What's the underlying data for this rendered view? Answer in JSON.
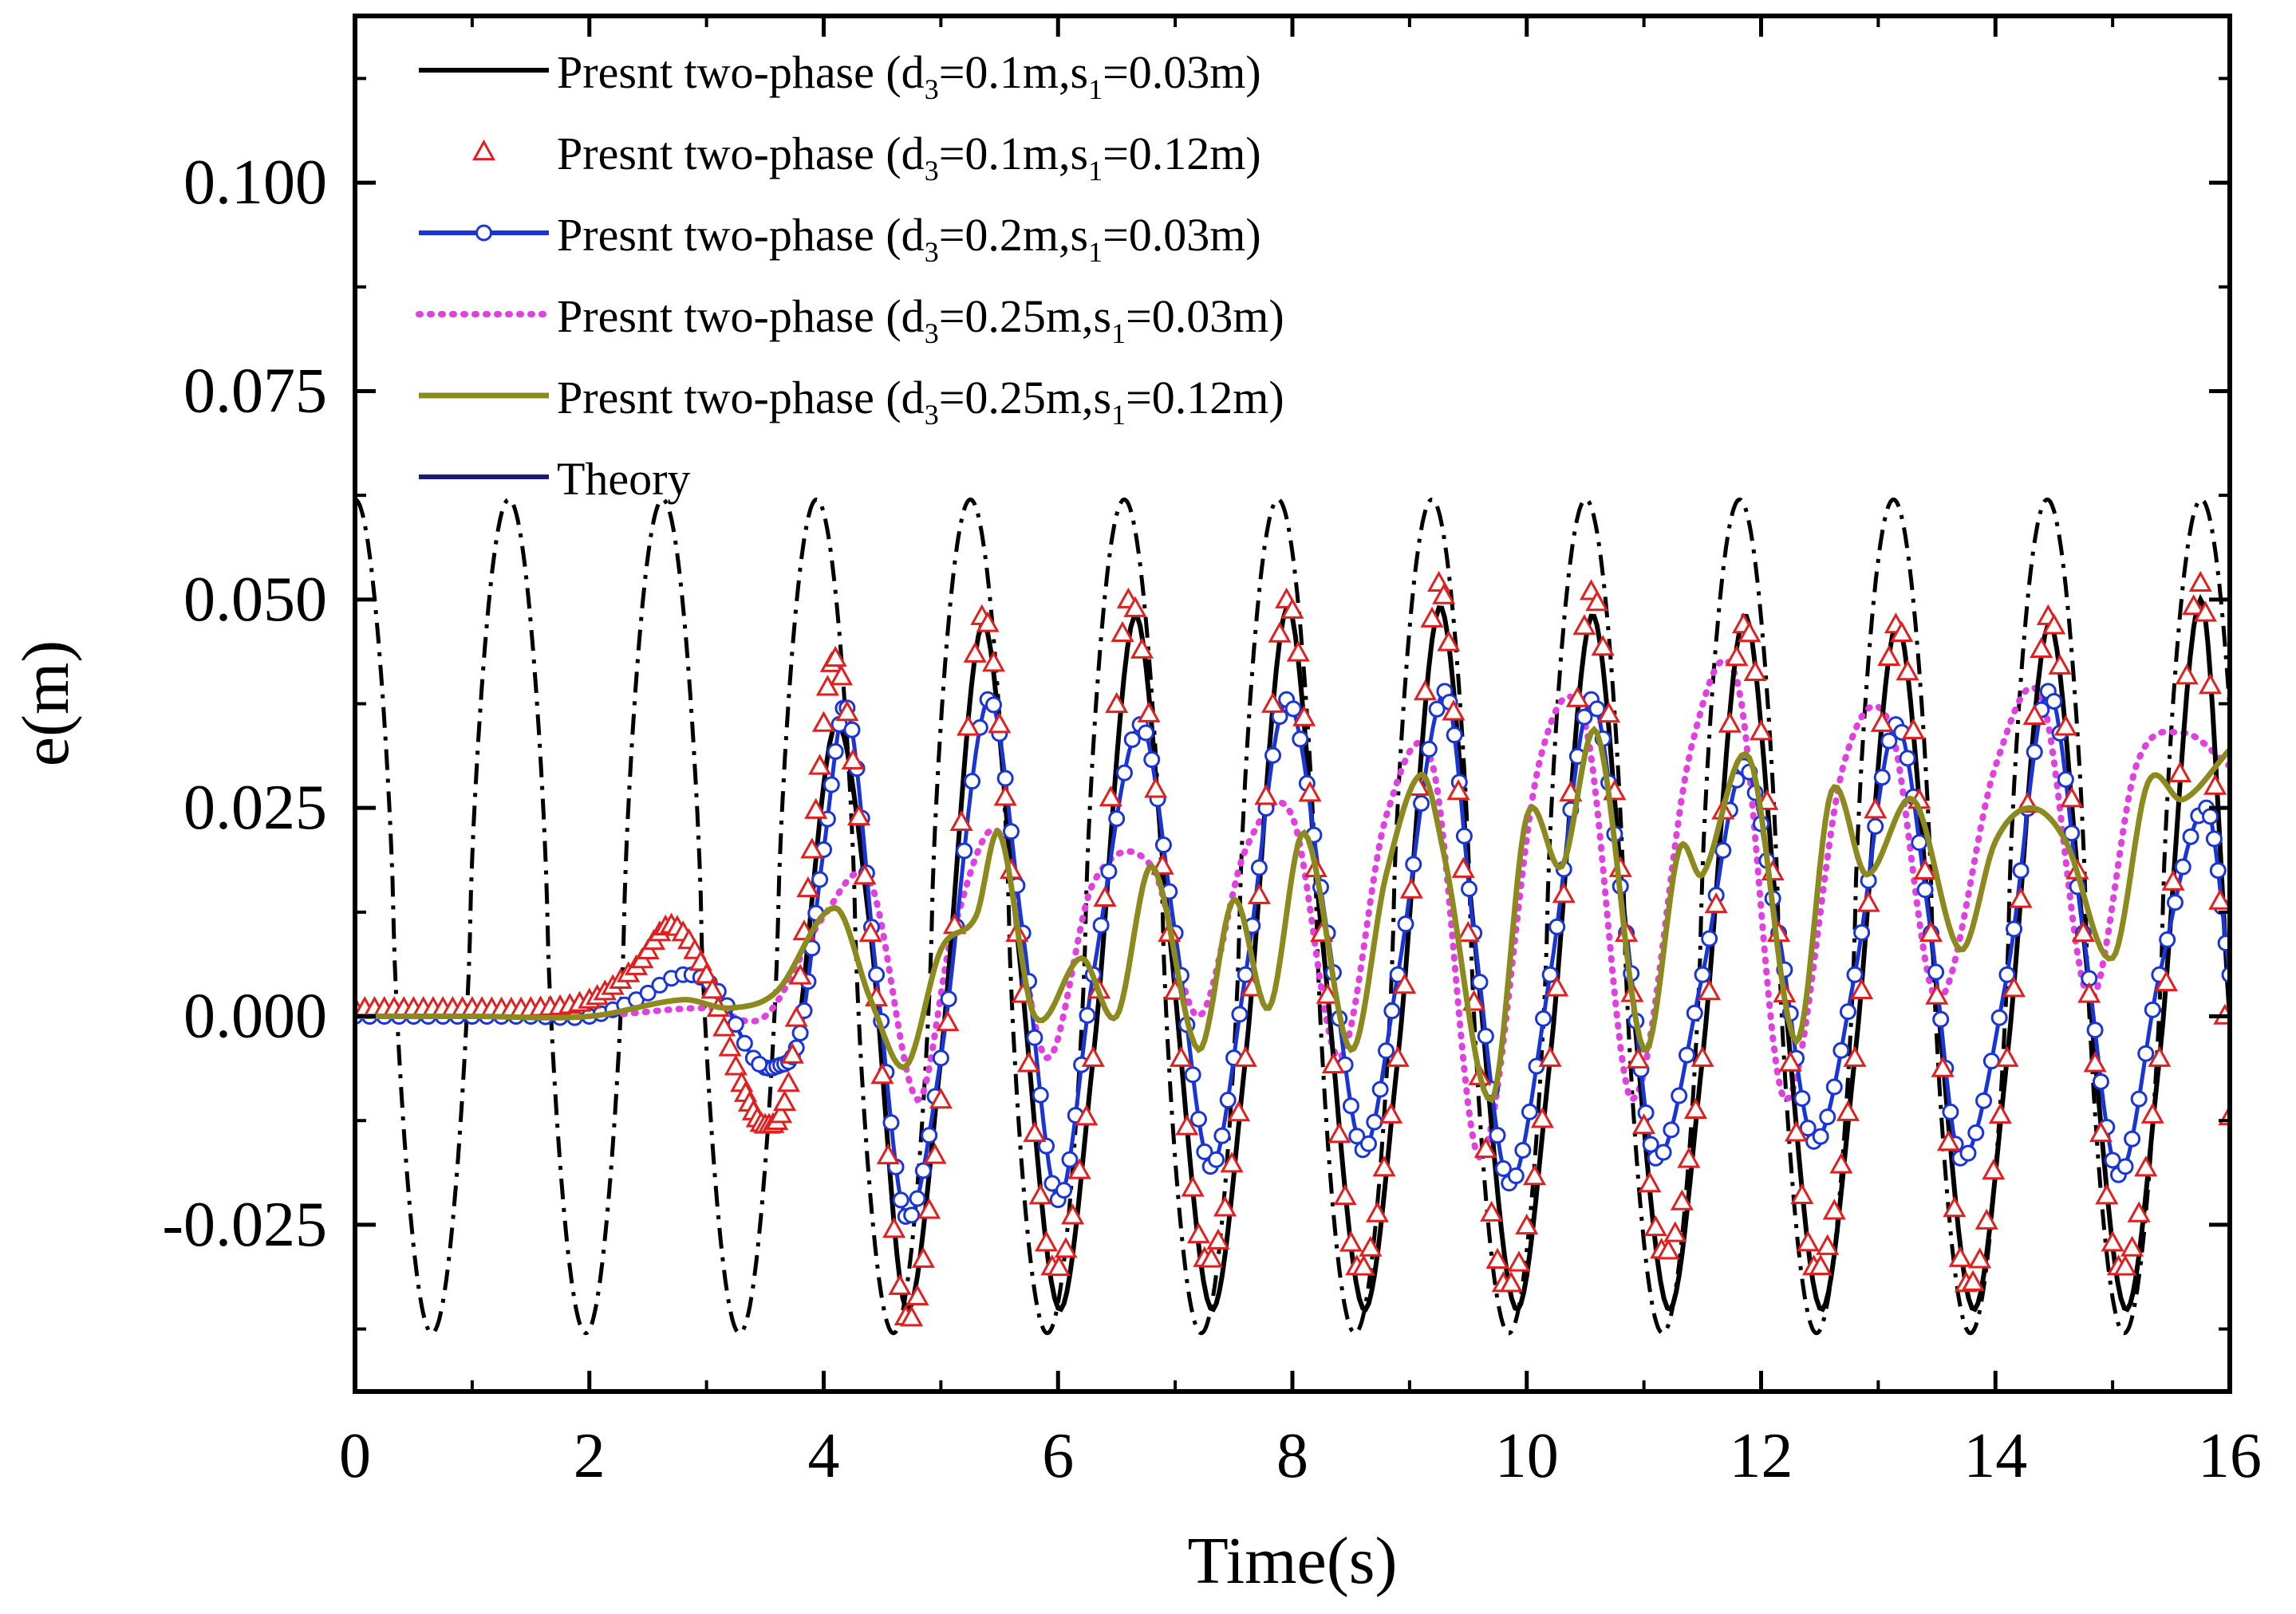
{
  "chart_data": {
    "type": "line",
    "title": "",
    "xlabel": "Time(s)",
    "ylabel": "e(m)",
    "xlim": [
      0,
      16
    ],
    "ylim": [
      -0.045,
      0.12
    ],
    "x_ticks": [
      0,
      2,
      4,
      6,
      8,
      10,
      12,
      14,
      16
    ],
    "x_tick_labels": [
      "0",
      "2",
      "4",
      "6",
      "8",
      "10",
      "12",
      "14",
      "16"
    ],
    "y_ticks": [
      -0.025,
      0.0,
      0.025,
      0.05,
      0.075,
      0.1
    ],
    "y_tick_labels": [
      "-0.025",
      "0.000",
      "0.025",
      "0.050",
      "0.075",
      "0.100"
    ],
    "grid": false,
    "legend_position": "top-left",
    "legend": {
      "prefix": "Presnt two-phase (",
      "items": [
        {
          "d3": "0.1m",
          "s1": "0.03m"
        },
        {
          "d3": "0.1m",
          "s1": "0.12m"
        },
        {
          "d3": "0.2m",
          "s1": "0.03m"
        },
        {
          "d3": "0.25m",
          "s1": "0.03m"
        },
        {
          "d3": "0.25m",
          "s1": "0.12m"
        }
      ],
      "theory_label": "Theory"
    },
    "series": [
      {
        "name": "Presnt two-phase (d3=0.1m,s1=0.03m)",
        "color": "#000000",
        "style": "solid",
        "x": [
          3.8,
          4.1,
          4.4,
          4.7,
          5.0,
          5.35,
          5.65,
          6.0,
          6.3,
          6.65,
          6.95,
          7.3,
          7.6,
          7.95,
          8.25,
          8.6,
          8.9,
          9.25,
          9.55,
          9.9,
          10.2,
          10.55,
          10.85,
          11.2,
          11.5,
          11.85,
          12.15,
          12.5,
          12.8,
          13.15,
          13.45,
          13.8,
          14.1,
          14.45,
          14.75,
          15.1,
          15.4,
          15.75,
          16.0
        ],
        "y": [
          0.0,
          0.035,
          0.01,
          -0.035,
          -0.005,
          0.047,
          0.01,
          -0.035,
          -0.005,
          0.048,
          0.01,
          -0.035,
          -0.005,
          0.049,
          0.01,
          -0.035,
          -0.005,
          0.049,
          0.01,
          -0.035,
          -0.005,
          0.048,
          0.01,
          -0.035,
          -0.005,
          0.048,
          0.01,
          -0.035,
          -0.005,
          0.047,
          0.01,
          -0.035,
          -0.005,
          0.047,
          0.01,
          -0.035,
          -0.005,
          0.05,
          0.0
        ]
      },
      {
        "name": "Presnt two-phase (d3=0.1m,s1=0.12m)",
        "color": "#e0201f",
        "style": "triangles",
        "x": [
          0.0,
          0.5,
          1.0,
          1.5,
          2.0,
          2.4,
          2.7,
          3.0,
          3.3,
          3.5,
          3.7,
          3.9,
          4.1,
          4.4,
          4.7,
          5.0,
          5.35,
          5.65,
          5.95,
          6.3,
          6.6,
          6.95,
          7.25,
          7.6,
          7.95,
          8.25,
          8.55,
          8.9,
          9.25,
          9.5,
          9.8,
          10.2,
          10.55,
          10.85,
          11.15,
          11.5,
          11.85,
          12.15,
          12.45,
          12.8,
          13.15,
          13.45,
          13.75,
          14.1,
          14.45,
          14.75,
          15.05,
          15.4,
          15.75,
          16.0
        ],
        "y": [
          0.001,
          0.001,
          0.001,
          0.001,
          0.002,
          0.006,
          0.011,
          0.005,
          -0.008,
          -0.013,
          -0.008,
          0.02,
          0.043,
          0.01,
          -0.036,
          -0.01,
          0.048,
          0.01,
          -0.03,
          -0.005,
          0.05,
          0.01,
          -0.029,
          -0.005,
          0.05,
          0.01,
          -0.03,
          -0.005,
          0.052,
          0.01,
          -0.032,
          -0.005,
          0.051,
          0.01,
          -0.028,
          -0.005,
          0.047,
          0.01,
          -0.03,
          -0.005,
          0.047,
          0.01,
          -0.032,
          -0.005,
          0.048,
          0.01,
          -0.03,
          -0.005,
          0.052,
          -0.012
        ]
      },
      {
        "name": "Presnt two-phase (d3=0.2m,s1=0.03m)",
        "color": "#1a35d6",
        "style": "circles",
        "x": [
          0.0,
          0.5,
          1.0,
          1.5,
          2.0,
          2.4,
          2.8,
          3.1,
          3.4,
          3.6,
          3.8,
          4.0,
          4.2,
          4.45,
          4.7,
          5.0,
          5.4,
          5.7,
          6.0,
          6.3,
          6.7,
          7.0,
          7.3,
          7.6,
          7.95,
          8.3,
          8.6,
          8.9,
          9.3,
          9.55,
          9.85,
          10.2,
          10.55,
          10.85,
          11.1,
          11.5,
          11.85,
          12.15,
          12.45,
          12.8,
          13.15,
          13.45,
          13.7,
          14.1,
          14.45,
          14.75,
          15.05,
          15.4,
          15.8,
          16.0
        ],
        "y": [
          0.0,
          0.0,
          0.0,
          0.0,
          0.0,
          0.002,
          0.005,
          0.003,
          -0.005,
          -0.006,
          -0.002,
          0.02,
          0.037,
          0.005,
          -0.024,
          -0.005,
          0.038,
          0.01,
          -0.022,
          0.005,
          0.035,
          0.01,
          -0.018,
          0.005,
          0.038,
          0.01,
          -0.016,
          0.005,
          0.039,
          0.01,
          -0.02,
          0.005,
          0.038,
          0.01,
          -0.017,
          0.005,
          0.03,
          0.01,
          -0.015,
          0.005,
          0.035,
          0.01,
          -0.017,
          0.005,
          0.039,
          0.01,
          -0.019,
          0.005,
          0.025,
          0.005
        ]
      },
      {
        "name": "Presnt two-phase (d3=0.25m,s1=0.03m)",
        "color": "#e040e0",
        "style": "dotted",
        "x": [
          0.0,
          1.0,
          2.0,
          3.0,
          3.5,
          4.0,
          4.4,
          4.8,
          5.1,
          5.5,
          5.9,
          6.3,
          6.8,
          7.2,
          7.6,
          8.0,
          8.4,
          8.8,
          9.2,
          9.6,
          10.1,
          10.5,
          10.9,
          11.4,
          11.8,
          12.2,
          12.7,
          13.1,
          13.5,
          14.0,
          14.4,
          14.8,
          15.2,
          15.6,
          16.0
        ],
        "y": [
          0.0,
          0.0,
          0.0,
          0.001,
          0.0,
          0.012,
          0.016,
          -0.01,
          0.01,
          0.022,
          -0.005,
          0.016,
          0.018,
          0.0,
          0.02,
          0.024,
          -0.005,
          0.024,
          0.03,
          -0.017,
          0.03,
          0.035,
          -0.01,
          0.032,
          0.04,
          -0.01,
          0.03,
          0.035,
          0.002,
          0.03,
          0.038,
          0.002,
          0.03,
          0.034,
          0.03
        ]
      },
      {
        "name": "Presnt two-phase (d3=0.25m,s1=0.12m)",
        "color": "#8c8a1e",
        "style": "solid",
        "x": [
          0.0,
          1.0,
          2.0,
          2.8,
          3.2,
          3.6,
          4.1,
          4.4,
          4.7,
          5.0,
          5.3,
          5.5,
          5.8,
          6.2,
          6.5,
          6.8,
          7.2,
          7.5,
          7.8,
          8.1,
          8.5,
          8.8,
          9.1,
          9.3,
          9.7,
          10.0,
          10.3,
          10.6,
          11.0,
          11.3,
          11.5,
          11.9,
          12.3,
          12.6,
          12.9,
          13.3,
          13.7,
          14.0,
          14.3,
          14.6,
          15.0,
          15.3,
          15.6,
          16.0
        ],
        "y": [
          0.0,
          0.0,
          0.0,
          0.002,
          0.001,
          0.003,
          0.013,
          0.002,
          -0.006,
          0.008,
          0.012,
          0.022,
          0.0,
          0.007,
          0.0,
          0.018,
          -0.004,
          0.014,
          0.001,
          0.022,
          -0.004,
          0.017,
          0.029,
          0.019,
          -0.01,
          0.024,
          0.018,
          0.034,
          -0.004,
          0.02,
          0.017,
          0.031,
          -0.003,
          0.027,
          0.017,
          0.026,
          0.008,
          0.021,
          0.025,
          0.021,
          0.007,
          0.028,
          0.026,
          0.032
        ]
      },
      {
        "name": "Theory",
        "color": "#000000",
        "style": "dash-dot",
        "amplitude_max": 0.062,
        "amplitude_min": -0.038,
        "period": 1.313,
        "x_sample": [
          0.0,
          0.33,
          0.66,
          0.99,
          1.31,
          1.64,
          1.97,
          2.3,
          2.63,
          2.95,
          3.28,
          3.61,
          3.94
        ],
        "y_sample": [
          0.062,
          0.012,
          -0.038,
          0.012,
          0.062,
          0.012,
          -0.038,
          0.012,
          0.062,
          0.012,
          -0.038,
          0.012,
          0.062
        ]
      }
    ]
  }
}
